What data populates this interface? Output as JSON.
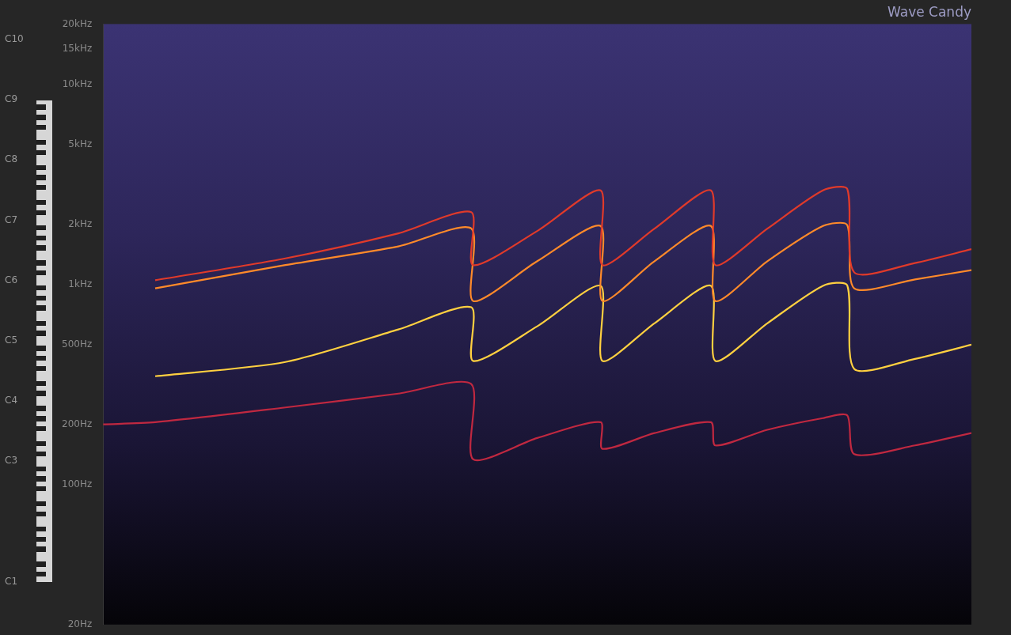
{
  "chart_data": {
    "type": "line",
    "title": "Wave Candy",
    "log": "y",
    "grid": false,
    "tick_labels": "y",
    "x": [
      0,
      6,
      21,
      34,
      42.4,
      42.6,
      50,
      57.3,
      57.5,
      63.5,
      70,
      70.5,
      76.5,
      82.9,
      85.7,
      86.5,
      93.5,
      100
    ],
    "xlim": [
      0,
      100
    ],
    "ylim": [
      20,
      20000
    ],
    "yticks": [
      {
        "value": 20,
        "label": "20Hz"
      },
      {
        "value": 100,
        "label": "100Hz"
      },
      {
        "value": 200,
        "label": "200Hz"
      },
      {
        "value": 500,
        "label": "500Hz"
      },
      {
        "value": 1000,
        "label": "1kHz"
      },
      {
        "value": 2000,
        "label": "2kHz"
      },
      {
        "value": 5000,
        "label": "5kHz"
      },
      {
        "value": 10000,
        "label": "10kHz"
      },
      {
        "value": 15000,
        "label": "15kHz"
      },
      {
        "value": 20000,
        "label": "20kHz"
      }
    ],
    "y2lim": [
      20,
      20000
    ],
    "y2ticks": [
      {
        "value": 32.7,
        "label": "C1"
      },
      {
        "value": 130.81,
        "label": "C3"
      },
      {
        "value": 261.63,
        "label": "C4"
      },
      {
        "value": 523.25,
        "label": "C5"
      },
      {
        "value": 1046.5,
        "label": "C6"
      },
      {
        "value": 2093,
        "label": "C7"
      },
      {
        "value": 4186,
        "label": "C8"
      },
      {
        "value": 8372,
        "label": "C9"
      },
      {
        "value": 16744,
        "label": "C10"
      }
    ],
    "series": [
      {
        "color": "#e03a2a",
        "values": [
          null,
          1050,
          1350,
          1800,
          2300,
          1250,
          1850,
          2950,
          1250,
          1900,
          2950,
          1250,
          1900,
          2950,
          3000,
          1150,
          1280,
          1500
        ]
      },
      {
        "color": "#ff8a2a",
        "values": [
          null,
          957,
          1250,
          1550,
          1905,
          827,
          1307,
          1960,
          827,
          1307,
          1960,
          827,
          1307,
          1960,
          1980,
          957,
          1060,
          1180
        ]
      },
      {
        "color": "#c02840",
        "values": [
          200,
          205,
          243,
          285,
          318,
          134,
          171,
          205,
          151,
          181,
          205,
          157,
          188,
          215,
          222,
          142,
          157,
          181
        ]
      },
      {
        "color": "#ffd040",
        "values": [
          null,
          348,
          410,
          596,
          769,
          415,
          618,
          985,
          415,
          640,
          985,
          415,
          640,
          985,
          990,
          379,
          425,
          500
        ]
      }
    ]
  }
}
